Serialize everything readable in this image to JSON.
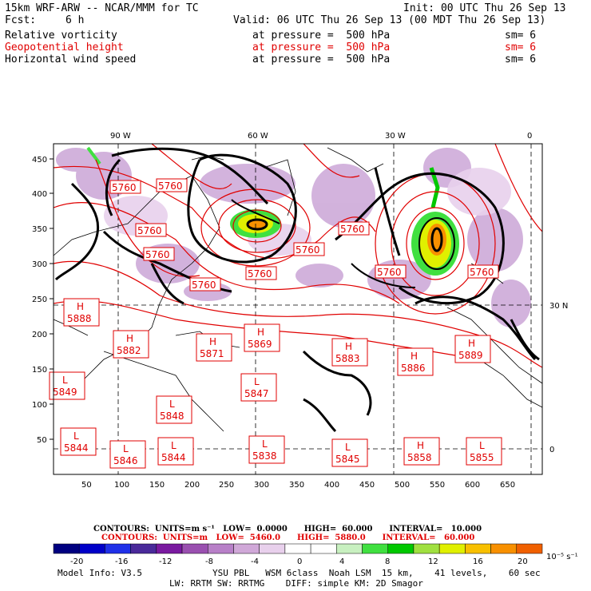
{
  "header": {
    "line1_left": "15km WRF-ARW -- NCAR/MMM for TC",
    "line1_right": "Init: 00 UTC Thu 26 Sep 13",
    "fcst_label": "Fcst:",
    "fcst_value": "6 h",
    "valid": "Valid: 06 UTC Thu 26 Sep 13 (00 MDT Thu 26 Sep 13)",
    "fields": [
      {
        "name": "Relative vorticity",
        "level": "at pressure =  500 hPa",
        "sm": "sm= 6",
        "color": "#000000"
      },
      {
        "name": "Geopotential height",
        "level": "at pressure =  500 hPa",
        "sm": "sm= 6",
        "color": "#e00000"
      },
      {
        "name": "Horizontal wind speed",
        "level": "at pressure =  500 hPa",
        "sm": "sm= 6",
        "color": "#000000"
      }
    ]
  },
  "map": {
    "top_lon_labels": [
      "90 W",
      "60 W",
      "30 W",
      "0"
    ],
    "right_lat_labels": [
      "30 N",
      "0"
    ],
    "y_ticks": [
      "450",
      "400",
      "350",
      "300",
      "250",
      "200",
      "150",
      "100",
      "50"
    ],
    "x_ticks": [
      "50",
      "100",
      "150",
      "200",
      "250",
      "300",
      "350",
      "400",
      "450",
      "500",
      "550",
      "600",
      "650"
    ],
    "height_labels": [
      {
        "t": "5760"
      },
      {
        "t": "5760"
      },
      {
        "t": "5760"
      },
      {
        "t": "5760"
      },
      {
        "t": "5760"
      },
      {
        "t": "5760"
      },
      {
        "t": "5760"
      },
      {
        "t": "5760"
      },
      {
        "t": "5760"
      },
      {
        "t": "5760"
      }
    ],
    "pressure_centers": [
      {
        "k": "H",
        "v": "5888"
      },
      {
        "k": "H",
        "v": "5882"
      },
      {
        "k": "H",
        "v": "5871"
      },
      {
        "k": "H",
        "v": "5869"
      },
      {
        "k": "H",
        "v": "5883"
      },
      {
        "k": "H",
        "v": "5886"
      },
      {
        "k": "H",
        "v": "5889"
      },
      {
        "k": "L",
        "v": "5849"
      },
      {
        "k": "L",
        "v": "5847"
      },
      {
        "k": "L",
        "v": "5848"
      },
      {
        "k": "L",
        "v": "5844"
      },
      {
        "k": "L",
        "v": "5846"
      },
      {
        "k": "L",
        "v": "5844"
      },
      {
        "k": "L",
        "v": "5838"
      },
      {
        "k": "L",
        "v": "5845"
      },
      {
        "k": "H",
        "v": "5858"
      },
      {
        "k": "L",
        "v": "5855"
      }
    ]
  },
  "contours": {
    "black": "CONTOURS:  UNITS=m s⁻¹   LOW=  0.0000      HIGH=  60.000      INTERVAL=   10.000",
    "red": "CONTOURS:  UNITS=m   LOW=  5460.0      HIGH=  5880.0      INTERVAL=   60.000"
  },
  "colorbar": {
    "colors": [
      "#000080",
      "#0000c8",
      "#2030e8",
      "#4a2a9a",
      "#7a1aa0",
      "#9a50b0",
      "#b880c8",
      "#d0a8d8",
      "#e8d0ec",
      "#ffffff",
      "#ffffff",
      "#c8f0c0",
      "#40e040",
      "#00c800",
      "#a0e040",
      "#e0f000",
      "#f8c000",
      "#f89000",
      "#f06000"
    ],
    "labels": [
      "-20",
      "-16",
      "-12",
      "-8",
      "-4",
      "0",
      "4",
      "8",
      "12",
      "16",
      "20"
    ],
    "units": "10⁻⁵ s⁻¹"
  },
  "footer": {
    "model": "Model Info: V3.5",
    "line1": "YSU PBL   WSM 6class  Noah LSM  15 km,    41 levels,    60 sec",
    "line2": "LW: RRTM SW: RRTMG    DIFF: simple KM: 2D Smagor"
  }
}
